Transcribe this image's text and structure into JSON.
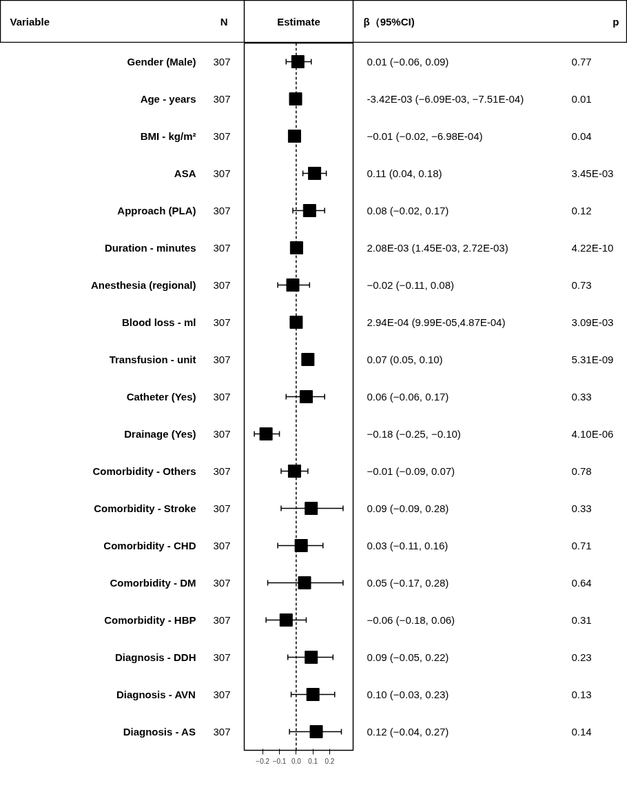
{
  "chart_data": {
    "type": "scatter",
    "orientation": "horizontal",
    "marker": "square",
    "color": "#000000",
    "categories": [
      "Gender (Male)",
      "Age - years",
      "BMI - kg/m²",
      "ASA",
      "Approach (PLA)",
      "Duration - minutes",
      "Anesthesia (regional)",
      "Blood loss - ml",
      "Transfusion - unit",
      "Catheter (Yes)",
      "Drainage (Yes)",
      "Comorbidity - Others",
      "Comorbidity - Stroke",
      "Comorbidity - CHD",
      "Comorbidity - DM",
      "Comorbidity - HBP",
      "Diagnosis - DDH",
      "Diagnosis - AVN",
      "Diagnosis - AS"
    ],
    "values": [
      0.01,
      -0.00342,
      -0.01,
      0.11,
      0.08,
      0.00208,
      -0.02,
      0.000294,
      0.07,
      0.06,
      -0.18,
      -0.01,
      0.09,
      0.03,
      0.05,
      -0.06,
      0.09,
      0.1,
      0.12
    ],
    "errors": [
      [
        -0.06,
        0.09
      ],
      null,
      null,
      [
        0.04,
        0.18
      ],
      [
        -0.02,
        0.17
      ],
      null,
      [
        -0.11,
        0.08
      ],
      null,
      null,
      [
        -0.06,
        0.17
      ],
      [
        -0.25,
        -0.1
      ],
      [
        -0.09,
        0.07
      ],
      [
        -0.09,
        0.28
      ],
      [
        -0.11,
        0.16
      ],
      [
        -0.17,
        0.28
      ],
      [
        -0.18,
        0.06
      ],
      [
        -0.05,
        0.22
      ],
      [
        -0.03,
        0.23
      ],
      [
        -0.04,
        0.27
      ]
    ],
    "xlim": [
      -0.31,
      0.34
    ],
    "xticks": [
      {
        "value": -0.2,
        "label": "−0.2"
      },
      {
        "value": -0.1,
        "label": "−0.1"
      },
      {
        "value": 0,
        "label": "0.0"
      },
      {
        "value": 0.1,
        "label": "0.1"
      },
      {
        "value": 0.2,
        "label": "0.2"
      }
    ],
    "ref_lines": [
      {
        "axis": "x",
        "value": 0,
        "line_style": "dashed",
        "color": "#000000"
      }
    ],
    "annotations": [
      "Variable",
      "N",
      "Estimate",
      "β（95%CI)",
      "p",
      "307",
      "307",
      "307",
      "307",
      "307",
      "307",
      "307",
      "307",
      "307",
      "307",
      "307",
      "307",
      "307",
      "307",
      "307",
      "307",
      "307",
      "307",
      "307",
      "0.77",
      "0.01",
      "0.04",
      "3.45E-03",
      "0.12",
      "4.22E-10",
      "0.73",
      "3.09E-03",
      "5.31E-09",
      "0.33",
      "4.10E-06",
      "0.78",
      "0.33",
      "0.71",
      "0.64",
      "0.31",
      "0.23",
      "0.13",
      "0.14",
      "0.01 (−0.06, 0.09)",
      "-3.42E-03 (−6.09E-03, −7.51E-04)",
      "−0.01 (−0.02, −6.98E-04)",
      "0.11 (0.04, 0.18)",
      "0.08 (−0.02, 0.17)",
      "2.08E-03 (1.45E-03, 2.72E-03)",
      "−0.02 (−0.11, 0.08)",
      "2.94E-04 (9.99E-05,4.87E-04)",
      "0.07 (0.05, 0.10)",
      "0.06 (−0.06, 0.17)",
      "−0.18 (−0.25, −0.10)",
      "−0.01 (−0.09, 0.07)",
      "0.09 (−0.09, 0.28)",
      "0.03 (−0.11, 0.16)",
      "0.05 (−0.17, 0.28)",
      "−0.06 (−0.18, 0.06)",
      "0.09 (−0.05, 0.22)",
      "0.10 (−0.03, 0.23)",
      "0.12 (−0.04, 0.27)"
    ]
  }
}
